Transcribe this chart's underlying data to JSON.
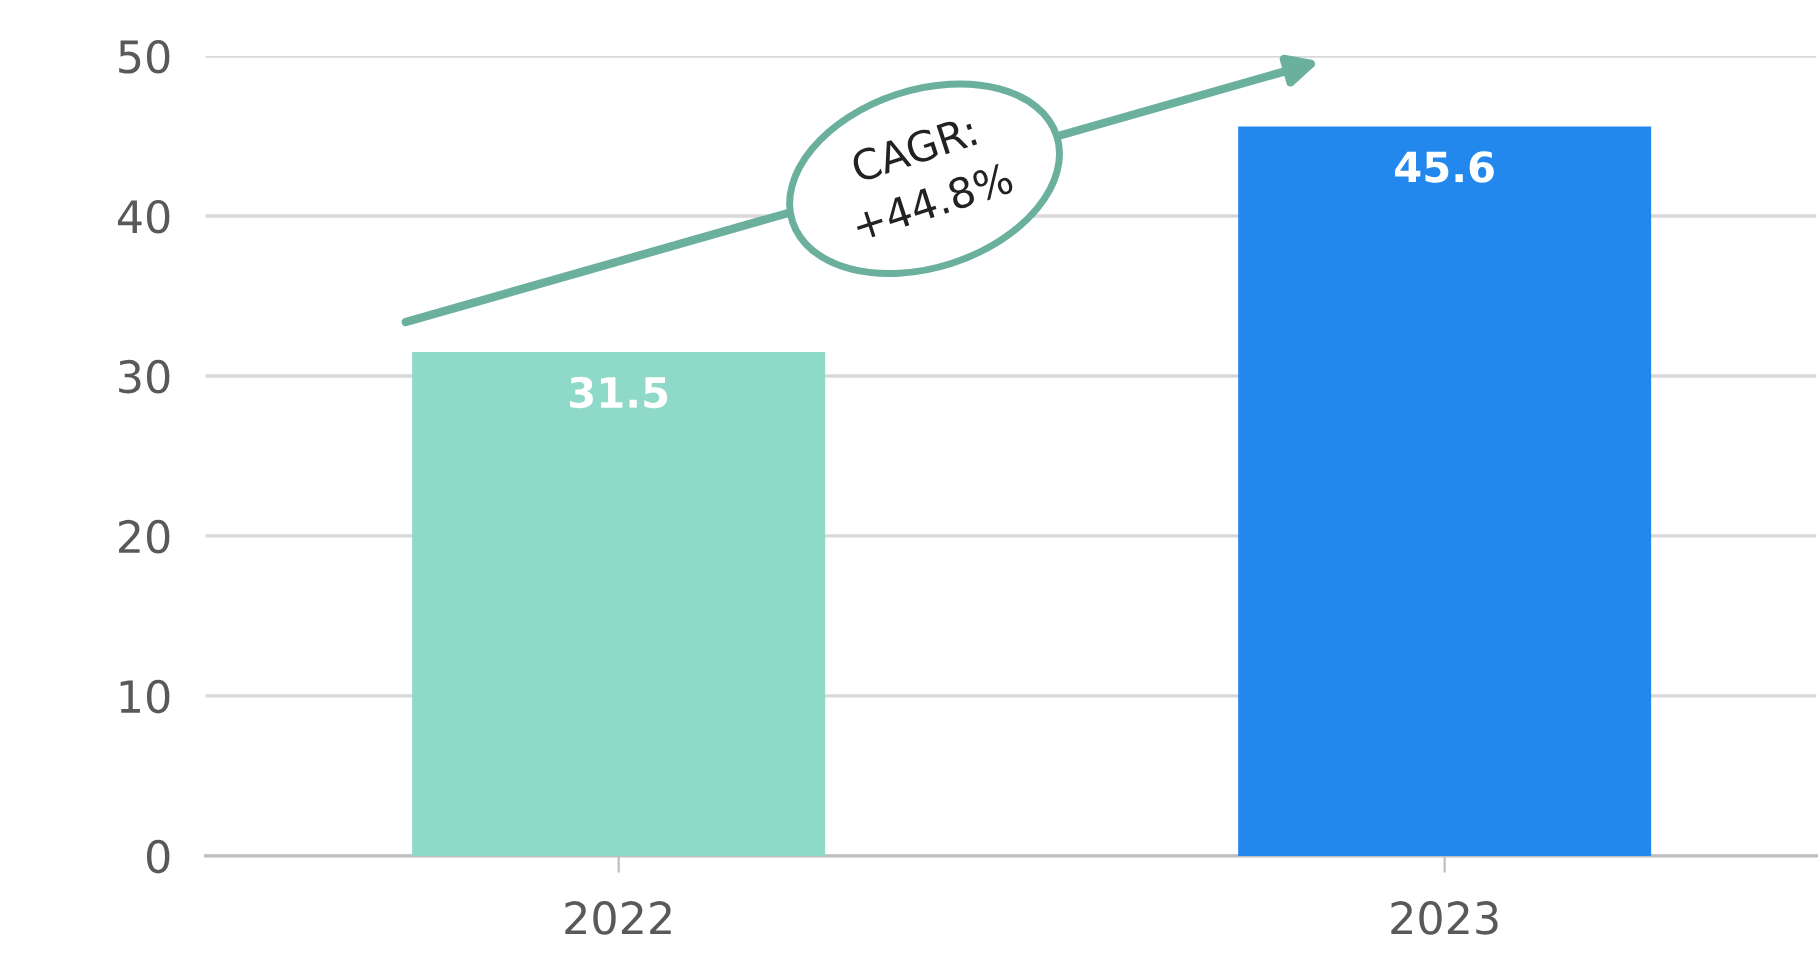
{
  "chart_data": {
    "type": "bar",
    "categories": [
      "2022",
      "2023"
    ],
    "values": [
      31.5,
      45.6
    ],
    "colors": [
      "#8fd9c8",
      "#2288ee"
    ],
    "ylim": [
      0,
      50
    ],
    "yticks": [
      0,
      10,
      20,
      30,
      40,
      50
    ],
    "grid": "y",
    "data_labels": true,
    "annotations": [
      "CAGR:\n+44.8%"
    ]
  }
}
